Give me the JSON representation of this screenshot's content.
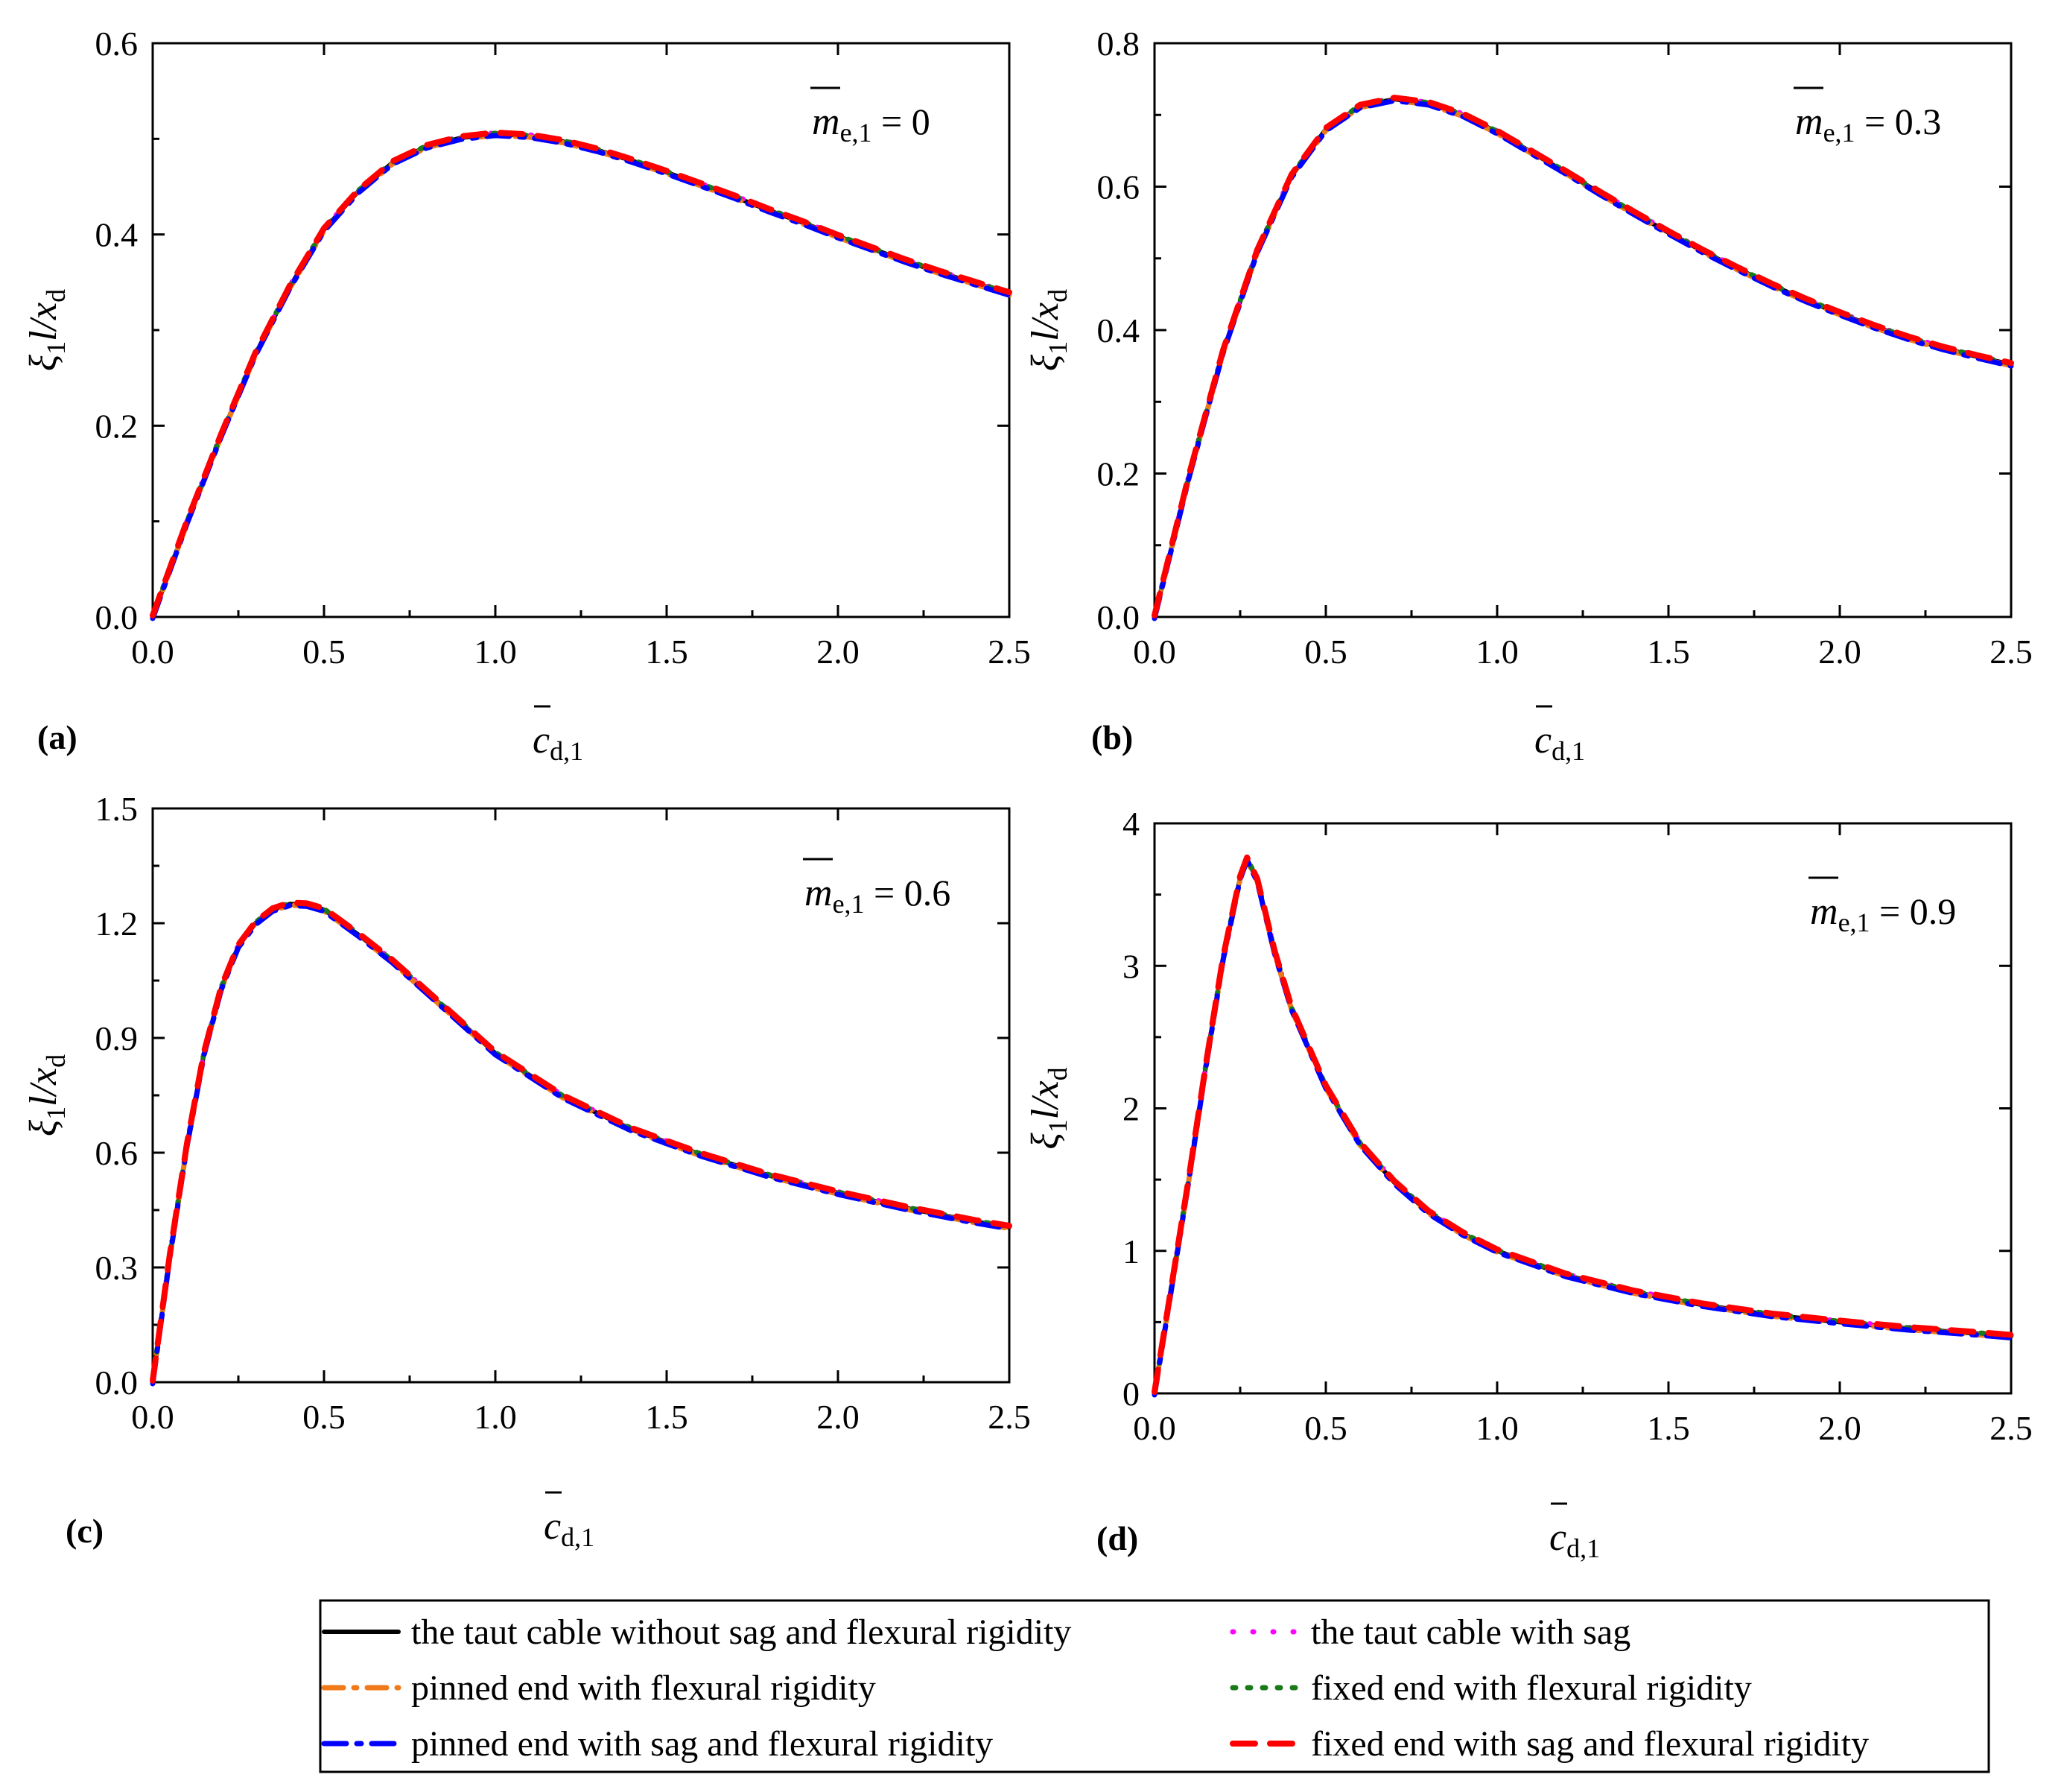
{
  "legend": {
    "entries": [
      {
        "key": "taut",
        "label": "the taut cable without sag and flexural rigidity",
        "color": "#000000"
      },
      {
        "key": "sag",
        "label": "the taut cable with sag",
        "color": "#ff00ff"
      },
      {
        "key": "pinned",
        "label": "pinned end with flexural rigidity",
        "color": "#f07a1a"
      },
      {
        "key": "fixed",
        "label": "fixed end with flexural rigidity",
        "color": "#1a7a1a"
      },
      {
        "key": "pinned_sag",
        "label": "pinned end with sag and flexural rigidity",
        "color": "#0000ff"
      },
      {
        "key": "fixed_sag",
        "label": "fixed end with sag and flexural rigidity",
        "color": "#ff0000"
      }
    ]
  },
  "chart_data": [
    {
      "type": "line",
      "panel_label": "(a)",
      "param_symbol": "m",
      "param_sub": "e,1",
      "param_value": "= 0",
      "ylabel_symbol": "ξ",
      "ylabel_sub1": "1",
      "ylabel_mid": "l/x",
      "ylabel_sub2": "d",
      "xlabel_symbol": "c",
      "xlabel_sub": "d,1",
      "xlim": [
        0,
        2.5
      ],
      "ylim": [
        0,
        0.6
      ],
      "xticks": [
        "0.0",
        "0.5",
        "1.0",
        "1.5",
        "2.0",
        "2.5"
      ],
      "yticks": [
        "0.0",
        "0.2",
        "0.4",
        "0.6"
      ],
      "x": [
        0,
        0.1,
        0.2,
        0.3,
        0.4,
        0.5,
        0.6,
        0.7,
        0.8,
        0.9,
        1.0,
        1.1,
        1.2,
        1.3,
        1.4,
        1.5,
        1.6,
        1.7,
        1.8,
        1.9,
        2.0,
        2.1,
        2.2,
        2.3,
        2.4,
        2.5
      ],
      "y": [
        0,
        0.099,
        0.19,
        0.275,
        0.345,
        0.405,
        0.445,
        0.475,
        0.492,
        0.501,
        0.505,
        0.503,
        0.497,
        0.488,
        0.477,
        0.465,
        0.452,
        0.439,
        0.425,
        0.412,
        0.398,
        0.385,
        0.372,
        0.36,
        0.349,
        0.338
      ]
    },
    {
      "type": "line",
      "panel_label": "(b)",
      "param_symbol": "m",
      "param_sub": "e,1",
      "param_value": "= 0.3",
      "ylabel_symbol": "ξ",
      "ylabel_sub1": "1",
      "ylabel_mid": "l/x",
      "ylabel_sub2": "d",
      "xlabel_symbol": "c",
      "xlabel_sub": "d,1",
      "xlim": [
        0,
        2.5
      ],
      "ylim": [
        0,
        0.8
      ],
      "xticks": [
        "0.0",
        "0.5",
        "1.0",
        "1.5",
        "2.0",
        "2.5"
      ],
      "yticks": [
        "0.0",
        "0.2",
        "0.4",
        "0.6",
        "0.8"
      ],
      "x": [
        0,
        0.1,
        0.2,
        0.3,
        0.4,
        0.5,
        0.6,
        0.7,
        0.8,
        0.9,
        1.0,
        1.1,
        1.2,
        1.3,
        1.4,
        1.5,
        1.6,
        1.7,
        1.8,
        1.9,
        2.0,
        2.1,
        2.2,
        2.3,
        2.4,
        2.5
      ],
      "y": [
        0,
        0.195,
        0.37,
        0.51,
        0.615,
        0.68,
        0.712,
        0.722,
        0.716,
        0.7,
        0.676,
        0.648,
        0.62,
        0.591,
        0.563,
        0.536,
        0.51,
        0.486,
        0.463,
        0.442,
        0.423,
        0.405,
        0.389,
        0.375,
        0.363,
        0.352
      ]
    },
    {
      "type": "line",
      "panel_label": "(c)",
      "param_symbol": "m",
      "param_sub": "e,1",
      "param_value": "= 0.6",
      "ylabel_symbol": "ξ",
      "ylabel_sub1": "1",
      "ylabel_mid": "l/x",
      "ylabel_sub2": "d",
      "xlabel_symbol": "c",
      "xlabel_sub": "d,1",
      "xlim": [
        0,
        2.5
      ],
      "ylim": [
        0,
        1.5
      ],
      "xticks": [
        "0.0",
        "0.5",
        "1.0",
        "1.5",
        "2.0",
        "2.5"
      ],
      "yticks": [
        "0.0",
        "0.3",
        "0.6",
        "0.9",
        "1.2",
        "1.5"
      ],
      "x": [
        0,
        0.05,
        0.1,
        0.15,
        0.2,
        0.25,
        0.3,
        0.35,
        0.4,
        0.45,
        0.5,
        0.6,
        0.7,
        0.8,
        0.9,
        1.0,
        1.2,
        1.4,
        1.6,
        1.8,
        2.0,
        2.2,
        2.4,
        2.5
      ],
      "y": [
        0,
        0.33,
        0.62,
        0.86,
        1.03,
        1.14,
        1.2,
        1.235,
        1.25,
        1.248,
        1.235,
        1.17,
        1.1,
        1.02,
        0.94,
        0.86,
        0.745,
        0.66,
        0.595,
        0.54,
        0.495,
        0.455,
        0.42,
        0.405
      ]
    },
    {
      "type": "line",
      "panel_label": "(d)",
      "param_symbol": "m",
      "param_sub": "e,1",
      "param_value": "= 0.9",
      "ylabel_symbol": "ξ",
      "ylabel_sub1": "1",
      "ylabel_mid": "l/x",
      "ylabel_sub2": "d",
      "xlabel_symbol": "c",
      "xlabel_sub": "d,1",
      "xlim": [
        0,
        2.5
      ],
      "ylim": [
        0,
        4
      ],
      "xticks": [
        "0.0",
        "0.5",
        "1.0",
        "1.5",
        "2.0",
        "2.5"
      ],
      "yticks": [
        "0",
        "1",
        "2",
        "3",
        "4"
      ],
      "x": [
        0,
        0.05,
        0.1,
        0.15,
        0.2,
        0.25,
        0.27,
        0.3,
        0.35,
        0.4,
        0.5,
        0.6,
        0.7,
        0.8,
        0.9,
        1.0,
        1.2,
        1.4,
        1.6,
        1.8,
        2.0,
        2.2,
        2.4,
        2.5
      ],
      "y": [
        0,
        0.75,
        1.5,
        2.3,
        3.05,
        3.62,
        3.75,
        3.6,
        3.1,
        2.7,
        2.15,
        1.75,
        1.48,
        1.27,
        1.12,
        1.0,
        0.83,
        0.71,
        0.62,
        0.55,
        0.5,
        0.455,
        0.42,
        0.4
      ]
    }
  ]
}
